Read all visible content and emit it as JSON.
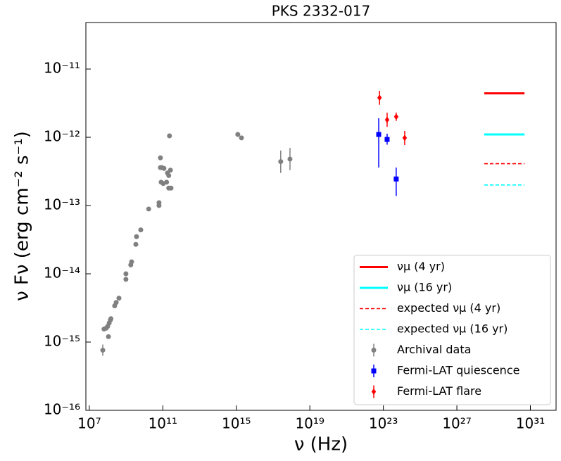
{
  "chart_data": {
    "type": "scatter",
    "title": "PKS 2332-017",
    "xlabel": "ν (Hz)",
    "ylabel": "ν Fν (erg cm⁻² s⁻¹)",
    "xscale": "log",
    "yscale": "log",
    "xlim": [
      6500000.0,
      2.5e+32
    ],
    "ylim": [
      1e-16,
      4.8e-11
    ],
    "xticks": [
      {
        "value": 10000000.0,
        "label": "10⁷"
      },
      {
        "value": 100000000000.0,
        "label": "10¹¹"
      },
      {
        "value": 1000000000000000.0,
        "label": "10¹⁵"
      },
      {
        "value": 1e+19,
        "label": "10¹⁹"
      },
      {
        "value": 1e+23,
        "label": "10²³"
      },
      {
        "value": 1e+27,
        "label": "10²⁷"
      },
      {
        "value": 1e+31,
        "label": "10³¹"
      }
    ],
    "yticks": [
      {
        "value": 1e-16,
        "label": "10⁻¹⁶"
      },
      {
        "value": 1e-15,
        "label": "10⁻¹⁵"
      },
      {
        "value": 1e-14,
        "label": "10⁻¹⁴"
      },
      {
        "value": 1e-13,
        "label": "10⁻¹³"
      },
      {
        "value": 1e-12,
        "label": "10⁻¹²"
      },
      {
        "value": 1e-11,
        "label": "10⁻¹¹"
      }
    ],
    "legend": "lower right",
    "series": [
      {
        "name": "νμ (4 yr)",
        "kind": "line",
        "style": "solid",
        "color": "#ff0000",
        "x": [
          3.1e+28,
          4.8e+30
        ],
        "values": [
          4.4e-12,
          4.4e-12
        ]
      },
      {
        "name": "νμ (16 yr)",
        "kind": "line",
        "style": "solid",
        "color": "#00ffff",
        "x": [
          3.1e+28,
          4.8e+30
        ],
        "values": [
          1.1e-12,
          1.1e-12
        ]
      },
      {
        "name": "expected νμ (4 yr)",
        "kind": "line",
        "style": "dashed",
        "color": "#ff0000",
        "x": [
          3.1e+28,
          4.8e+30
        ],
        "values": [
          4.1e-13,
          4.1e-13
        ]
      },
      {
        "name": "expected νμ (16 yr)",
        "kind": "line",
        "style": "dashed",
        "color": "#00ffff",
        "x": [
          3.1e+28,
          4.8e+30
        ],
        "values": [
          2e-13,
          2e-13
        ]
      },
      {
        "name": "Archival data",
        "kind": "points",
        "marker": "circle",
        "color": "#808080",
        "x": [
          54000000.0,
          63000000.0,
          83000000.0,
          100000000.0,
          110000000.0,
          120000000.0,
          140000000.0,
          150000000.0,
          240000000.0,
          290000000.0,
          410000000.0,
          980000000.0,
          980000000.0,
          1800000000.0,
          2000000000.0,
          3400000000.0,
          3700000000.0,
          6300000000.0,
          17000000000.0,
          62000000000.0,
          62000000000.0,
          74000000000.0,
          74000000000.0,
          81000000000.0,
          89000000000.0,
          105000000000.0,
          115000000000.0,
          160000000000.0,
          180000000000.0,
          210000000000.0,
          260000000000.0,
          210000000000.0,
          280000000000.0,
          230000000000.0,
          1200000000000000.0,
          1900000000000000.0,
          2.6e+17,
          8.3e+17
        ],
        "values": [
          7.6e-16,
          1.55e-15,
          1.6e-15,
          1.7e-15,
          1.2e-15,
          1.9e-15,
          2.1e-15,
          2.2e-15,
          3.4e-15,
          3.8e-15,
          4.4e-15,
          8.3e-15,
          1e-14,
          1.35e-14,
          1.5e-14,
          2.7e-14,
          3.5e-14,
          4.4e-14,
          8.9e-14,
          1e-13,
          1.1e-13,
          3.6e-13,
          5e-13,
          2.2e-13,
          3.6e-13,
          2.1e-13,
          3.5e-13,
          2.2e-13,
          3e-13,
          2.75e-13,
          3.3e-13,
          1.8e-13,
          1.8e-13,
          1.05e-12,
          1.1e-12,
          9.8e-13,
          4.4e-13,
          4.8e-13
        ],
        "yerr": [
          [
            1.3e-16,
            1.6e-16
          ],
          null,
          null,
          null,
          null,
          null,
          null,
          null,
          null,
          null,
          null,
          null,
          null,
          null,
          null,
          null,
          null,
          null,
          null,
          null,
          null,
          null,
          null,
          null,
          null,
          null,
          null,
          null,
          null,
          null,
          null,
          null,
          null,
          null,
          null,
          null,
          [
            1.4e-13,
            2e-13
          ],
          [
            1.5e-13,
            2.2e-13
          ]
        ]
      },
      {
        "name": "Fermi-LAT quiescence",
        "kind": "points",
        "marker": "square",
        "color": "#0000ff",
        "x": [
          5.6e+22,
          1.6e+23,
          5e+23
        ],
        "values": [
          1.1e-12,
          9.3e-13,
          2.45e-13
        ],
        "yerr": [
          [
            7.4e-13,
            8e-13
          ],
          [
            1.5e-13,
            2e-13
          ],
          [
            1.07e-13,
            1.15e-13
          ]
        ]
      },
      {
        "name": "Fermi-LAT flare",
        "kind": "points",
        "marker": "diamond",
        "color": "#ff0000",
        "x": [
          6.2e+22,
          1.6e+23,
          5e+23,
          1.45e+24
        ],
        "values": [
          3.8e-12,
          1.8e-12,
          2e-12,
          9.8e-13
        ],
        "yerr": [
          [
            8e-13,
            1e-12
          ],
          [
            3.8e-13,
            4.9e-13
          ],
          [
            2.6e-13,
            3e-13
          ],
          [
            2.1e-13,
            2.6e-13
          ]
        ]
      }
    ]
  }
}
